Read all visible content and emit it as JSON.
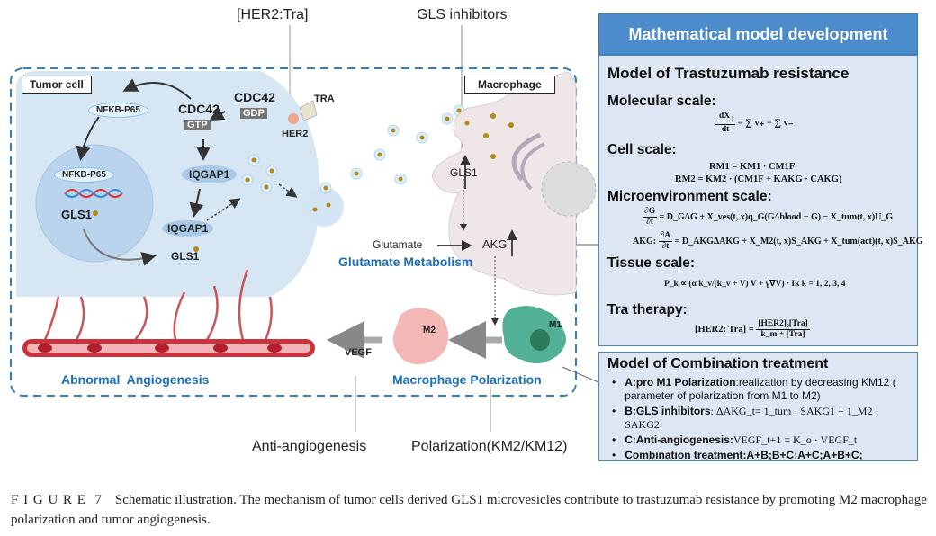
{
  "figure": {
    "top_labels": {
      "her2_tra": "[HER2:Tra]",
      "gls_inhibitors": "GLS inhibitors"
    },
    "bottom_labels": {
      "anti_angiogenesis": "Anti-angiogenesis",
      "polarization": "Polarization(KM2/KM12)"
    },
    "tumor_cell": {
      "title": "Tumor cell",
      "nfkb_cyto": "NFKB-P65",
      "nfkb_nuc": "NFKB-P65",
      "gls1_nuc": "GLS1",
      "cdc42_gtp": "CDC42",
      "gtp": "GTP",
      "cdc42_gdp": "CDC42",
      "gdp": "GDP",
      "iqgap1": "IQGAP1",
      "iqgap1_vesicle": "IQGAP1",
      "gls1_vesicle": "GLS1",
      "tra": "TRA",
      "her2": "HER2"
    },
    "macrophage": {
      "title": "Macrophage",
      "gls1": "GLS1",
      "glutamate": "Glutamate",
      "akg": "AKG",
      "glutamate_metabolism": "Glutamate Metabolism",
      "m1": "M1",
      "m2": "M2",
      "vegf": "VEGF",
      "macrophage_polarization": "Macrophage Polarization"
    },
    "abnormal_angiogenesis": "Abnormal  Angiogenesis",
    "colors": {
      "dashed_border": "#2f7fc1",
      "tumor_cell": "#d6e6f3",
      "macrophage": "#efe6e8",
      "vessel": "#c9343c",
      "m1": "#4fae92",
      "m2": "#f2b3b3",
      "label_blue": "#1a6fb8"
    }
  },
  "panel": {
    "header": "Mathematical model development",
    "model_title": "Model of Trastuzumab resistance",
    "molecular": {
      "title": "Molecular scale:",
      "eq_num": "dX",
      "eq_sub": "i",
      "eq_den": "dt",
      "eq_rhs": "= ∑ v₊ − ∑ v₋"
    },
    "cell": {
      "title": "Cell scale:",
      "eq1": "RM1 = KM1 · CM1F",
      "eq2": "RM2 = KM2 · (CM1F + KAKG · CAKG)"
    },
    "micro": {
      "title": "Microenvironment scale:",
      "eq1_lhs_num": "∂G",
      "eq1_lhs_den": "∂t",
      "eq1_rhs": "= D_GΔG + X_ves(t, x)q_G(G^blood − G) − X_tum(t, x)U_G",
      "eq2_prefix": "AKG:",
      "eq2_lhs_num": "∂A",
      "eq2_lhs_den": "∂t",
      "eq2_rhs": "= D_AKGΔAKG + X_M2(t, x)S_AKG + X_tum(act)(t, x)S_AKG"
    },
    "tissue": {
      "title": "Tissue scale:",
      "eq": "P_k ∝ (α k_v/(k_v + V) V + γ∇V) · Ik    k = 1, 2, 3, 4"
    },
    "tra": {
      "title": "Tra therapy:",
      "eq_lhs": "[HER2: Tra] =",
      "eq_num": "[HER2]₀[Tra]",
      "eq_den": "k_m + [Tra]"
    },
    "combination": {
      "title": "Model of Combination treatment",
      "items": [
        {
          "bold": "A:pro M1 Polarization",
          "text": ":realization by decreasing KM12 ( parameter of polarization from M1 to M2)"
        },
        {
          "bold": "B:GLS inhibitors",
          "text": ": ΔAKG_t= 1_tum · SAKG1 + 1_M2 · SAKG2"
        },
        {
          "bold": "C:Anti-angiogenesis:",
          "text": "VEGF_t+1 = K_o · VEGF_t"
        },
        {
          "bold": "Combination treatment",
          "text": ":A+B;B+C;A+C;A+B+C;"
        }
      ]
    }
  },
  "caption": {
    "label": "F I G U R E  7",
    "text": "Schematic illustration. The mechanism of tumor cells derived GLS1 microvesicles contribute to trastuzumab resistance by promoting M2 macrophage polarization and tumor angiogenesis."
  }
}
